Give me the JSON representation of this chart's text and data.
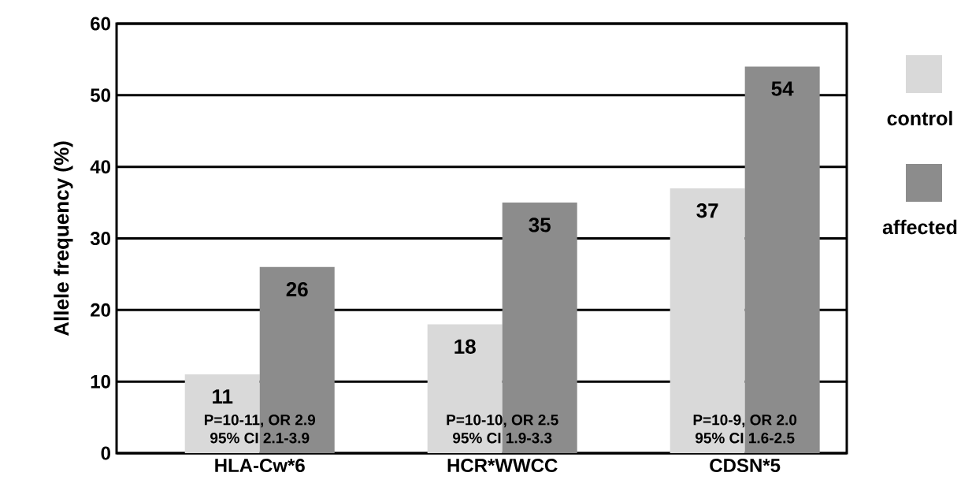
{
  "chart_data": {
    "type": "bar",
    "ylabel": "Allele frequency (%)",
    "categories": [
      "HLA-Cw*6",
      "HCR*WWCC",
      "CDSN*5"
    ],
    "series": [
      {
        "name": "control",
        "color": "#d9d9d9",
        "values": [
          11,
          18,
          37
        ]
      },
      {
        "name": "affected",
        "color": "#8c8c8c",
        "values": [
          26,
          35,
          54
        ]
      }
    ],
    "ylim": [
      0,
      60
    ],
    "yticks": [
      0,
      10,
      20,
      30,
      40,
      50,
      60
    ],
    "grid": "y",
    "legend": "right",
    "data_labels": true,
    "annotations": [
      "P=10-11, OR 2.9",
      "95% CI 2.1-3.9",
      "P=10-10, OR 2.5",
      "95% CI 1.9-3.3",
      "P=10-9, OR 2.0",
      "95% CI 1.6-2.5"
    ]
  }
}
